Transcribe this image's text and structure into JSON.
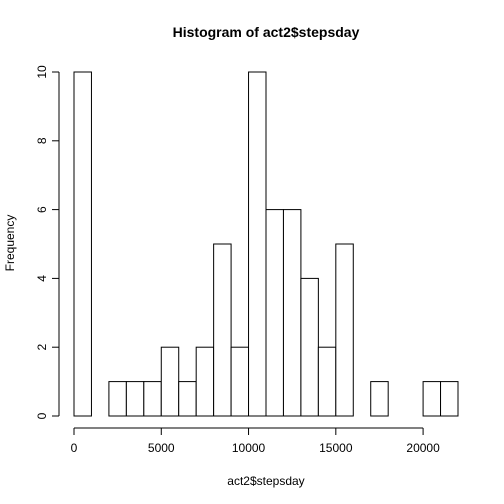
{
  "chart_data": {
    "type": "bar",
    "title": "Histogram of act2$stepsday",
    "xlabel": "act2$stepsday",
    "ylabel": "Frequency",
    "bins": [
      {
        "start": 0,
        "end": 1000,
        "count": 10
      },
      {
        "start": 1000,
        "end": 2000,
        "count": 0
      },
      {
        "start": 2000,
        "end": 3000,
        "count": 1
      },
      {
        "start": 3000,
        "end": 4000,
        "count": 1
      },
      {
        "start": 4000,
        "end": 5000,
        "count": 1
      },
      {
        "start": 5000,
        "end": 6000,
        "count": 2
      },
      {
        "start": 6000,
        "end": 7000,
        "count": 1
      },
      {
        "start": 7000,
        "end": 8000,
        "count": 2
      },
      {
        "start": 8000,
        "end": 9000,
        "count": 5
      },
      {
        "start": 9000,
        "end": 10000,
        "count": 2
      },
      {
        "start": 10000,
        "end": 11000,
        "count": 10
      },
      {
        "start": 11000,
        "end": 12000,
        "count": 6
      },
      {
        "start": 12000,
        "end": 13000,
        "count": 6
      },
      {
        "start": 13000,
        "end": 14000,
        "count": 4
      },
      {
        "start": 14000,
        "end": 15000,
        "count": 2
      },
      {
        "start": 15000,
        "end": 16000,
        "count": 5
      },
      {
        "start": 16000,
        "end": 17000,
        "count": 0
      },
      {
        "start": 17000,
        "end": 18000,
        "count": 1
      },
      {
        "start": 18000,
        "end": 19000,
        "count": 0
      },
      {
        "start": 19000,
        "end": 20000,
        "count": 0
      },
      {
        "start": 20000,
        "end": 21000,
        "count": 1
      },
      {
        "start": 21000,
        "end": 22000,
        "count": 1
      }
    ],
    "xticks": [
      0,
      5000,
      10000,
      15000,
      20000
    ],
    "yticks": [
      0,
      2,
      4,
      6,
      8,
      10
    ],
    "xlim": [
      0,
      22000
    ],
    "ylim": [
      0,
      10
    ],
    "grid": false,
    "legend": "none",
    "bar_fill": "#ffffff",
    "bar_stroke": "#000000"
  }
}
